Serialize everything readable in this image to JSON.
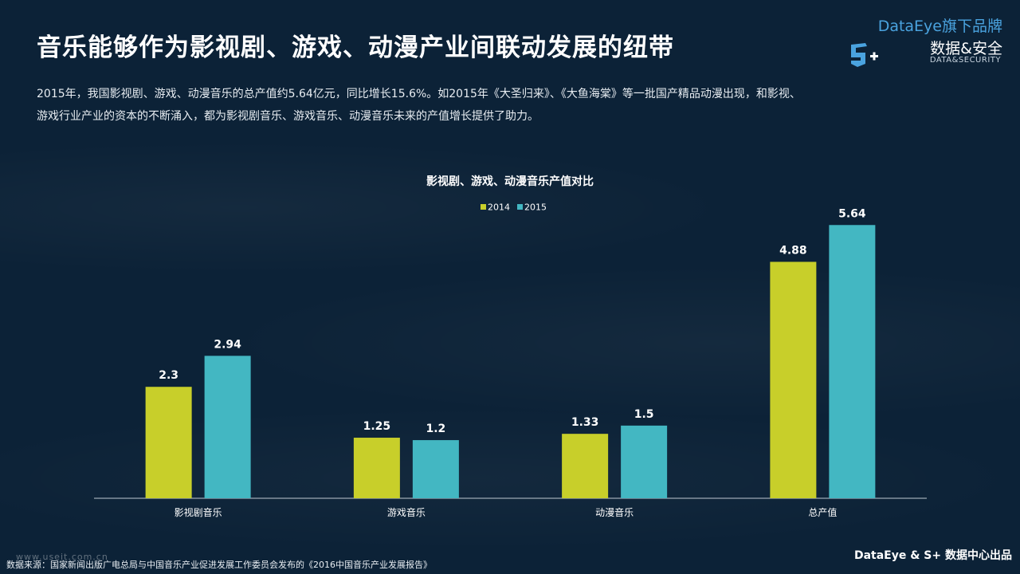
{
  "header": {
    "title": "音乐能够作为影视剧、游戏、动漫产业间联动发展的纽带"
  },
  "brand": {
    "tagline": "DataEye旗下品牌",
    "name": "数据&安全",
    "sub": "DATA&SECURITY"
  },
  "intro": {
    "line1": "2015年，我国影视剧、游戏、动漫音乐的总产值约5.64亿元，同比增长15.6%。如2015年《大圣归来》、《大鱼海棠》等一批国产精品动漫出现，和影视、",
    "line2": "游戏行业产业的资本的不断涌入，都为影视剧音乐、游戏音乐、动漫音乐未来的产值增长提供了助力。"
  },
  "chart_data": {
    "type": "bar",
    "title": "影视剧、游戏、动漫音乐产值对比",
    "categories": [
      "影视剧音乐",
      "游戏音乐",
      "动漫音乐",
      "总产值"
    ],
    "series": [
      {
        "name": "2014",
        "color": "#c8cf2a",
        "values": [
          2.3,
          1.25,
          1.33,
          4.88
        ]
      },
      {
        "name": "2015",
        "color": "#43b7c2",
        "values": [
          2.94,
          1.2,
          1.5,
          5.64
        ]
      }
    ],
    "ylim": [
      0,
      6.5
    ],
    "grid": false,
    "legend": "top-center"
  },
  "footer": {
    "source": "数据来源：国家新闻出版广电总局与中国音乐产业促进发展工作委员会发布的《2016中国音乐产业发展报告》",
    "watermark": "www.useit.com.cn",
    "credit": "DataEye & S+ 数据中心出品"
  }
}
